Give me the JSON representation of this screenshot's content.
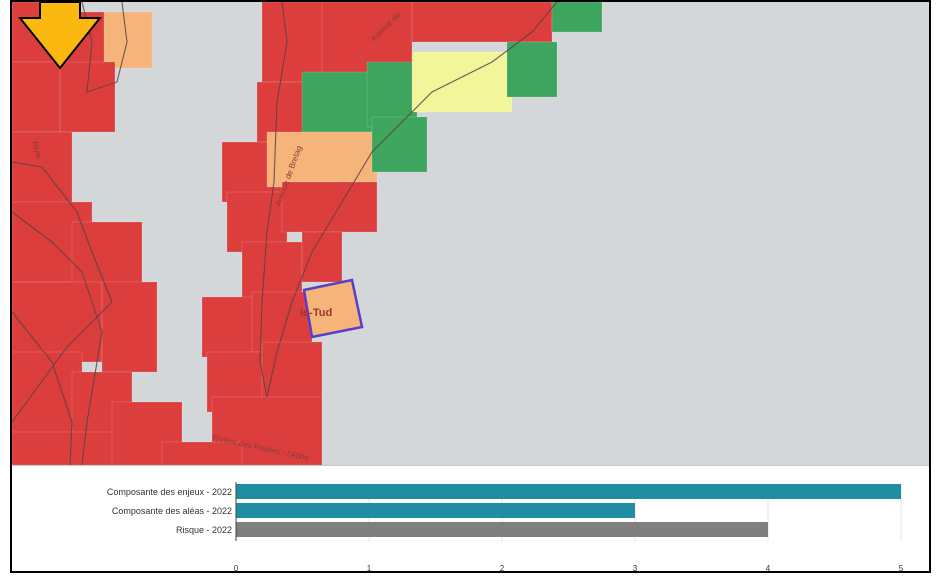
{
  "map": {
    "place_label": "le-Tud",
    "street_labels": [
      "Avenue de",
      "Avenue de Bretag",
      "Rue de la Riv",
      "Rivie",
      "Riviere des Prairies",
      "Rivière des Prairies",
      "Rivière des Prairies - l'Abbé"
    ],
    "colors": {
      "background": "#d4d7d9",
      "high_risk": "#dc3e3e",
      "moderate": "#f5b47a",
      "low": "#f2f59a",
      "very_low": "#3da55d",
      "selection": "#5a3ec8",
      "arrow_fill": "#fbb810"
    }
  },
  "chart_data": {
    "type": "bar",
    "orientation": "horizontal",
    "categories": [
      "Composante des enjeux - 2022",
      "Composante des aléas - 2022",
      "Risque - 2022"
    ],
    "values": [
      5,
      3,
      4
    ],
    "colors": [
      "#1f8ea3",
      "#1f8ea3",
      "#7f7f7f"
    ],
    "xlim": [
      0,
      5
    ],
    "ticks": [
      "0",
      "1",
      "2",
      "3",
      "4",
      "5"
    ],
    "grid": true
  }
}
